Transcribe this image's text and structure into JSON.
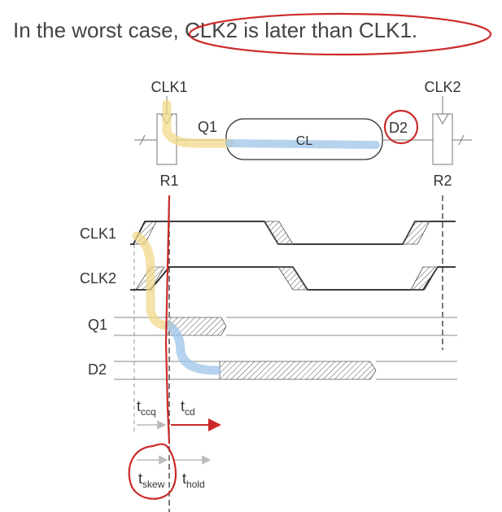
{
  "header": {
    "headline_part1": "In the worst case, ",
    "headline_part2": "CLK2 is later than CLK1."
  },
  "circuit": {
    "clk1_label": "CLK1",
    "clk2_label": "CLK2",
    "q1_label": "Q1",
    "d2_label": "D2",
    "cl_label": "CL",
    "r1_label": "R1",
    "r2_label": "R2"
  },
  "timing": {
    "signals": [
      "CLK1",
      "CLK2",
      "Q1",
      "D2"
    ],
    "tccq_main": "t",
    "tccq_sub": "ccq",
    "tcd_main": "t",
    "tcd_sub": "cd",
    "tskew_main": "t",
    "tskew_sub": "skew",
    "thold_main": "t",
    "thold_sub": "hold"
  },
  "colors": {
    "annotation_red": "#cc2a2a",
    "highlight_yellow": "#f2d88a",
    "highlight_blue": "#9cc4e8",
    "line_dark": "#222222"
  }
}
